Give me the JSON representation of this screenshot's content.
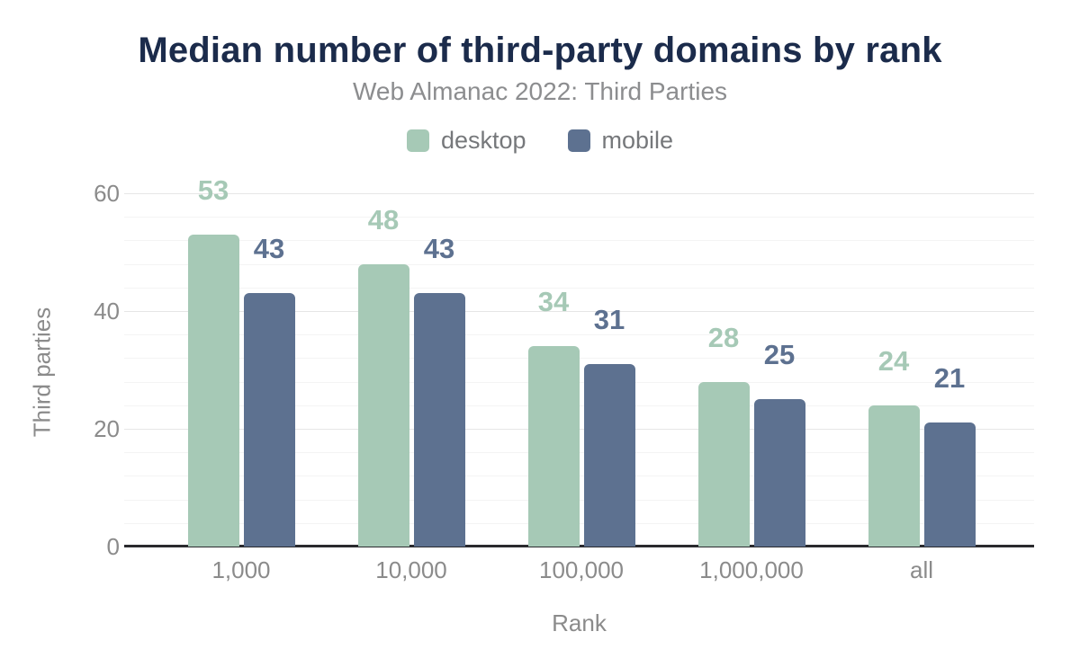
{
  "title": "Median number of third-party domains by rank",
  "subtitle": "Web Almanac 2022: Third Parties",
  "chart_data": {
    "type": "bar",
    "categories": [
      "1,000",
      "10,000",
      "100,000",
      "1,000,000",
      "all"
    ],
    "series": [
      {
        "name": "desktop",
        "color": "#a6c9b6",
        "values": [
          53,
          48,
          34,
          28,
          24
        ]
      },
      {
        "name": "mobile",
        "color": "#5d7190",
        "values": [
          43,
          43,
          31,
          25,
          21
        ]
      }
    ],
    "title": "Median number of third-party domains by rank",
    "subtitle": "Web Almanac 2022: Third Parties",
    "xlabel": "Rank",
    "ylabel": "Third parties",
    "ylim": [
      0,
      60
    ],
    "yticks": [
      0,
      20,
      40,
      60
    ],
    "minor_grid_interval": 4,
    "grid": true,
    "data_labels": true,
    "legend_position": "top"
  },
  "colors": {
    "desktop": "#a6c9b6",
    "mobile": "#5d7190",
    "title_text": "#1b2b4b",
    "subtitle_text": "#8c8d8f",
    "legend_text": "#76787b",
    "axis_text": "#8b8b8b",
    "axis_line": "#2a2a2e",
    "grid_major": "#e6e6e6",
    "grid_minor": "#f4f4f4",
    "background": "#ffffff"
  }
}
